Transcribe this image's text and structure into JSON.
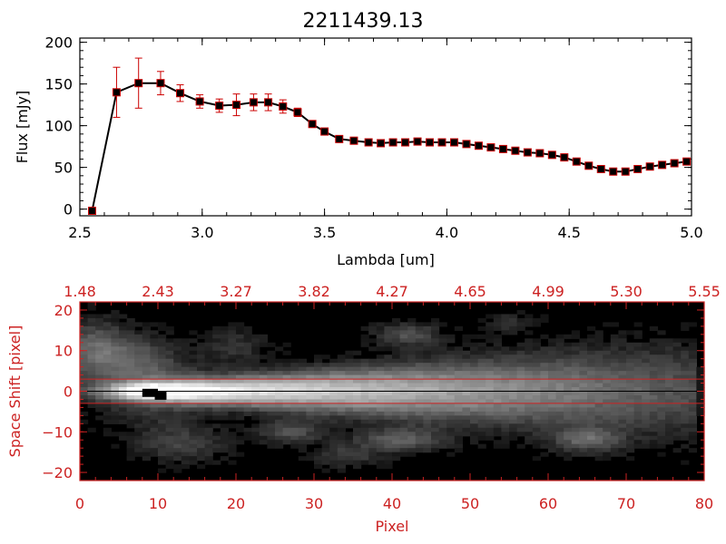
{
  "chart_data": [
    {
      "type": "line",
      "title": "2211439.13",
      "xlabel": "Lambda [um]",
      "ylabel": "Flux [mJy]",
      "xlim": [
        2.5,
        5.0
      ],
      "ylim": [
        -8,
        205
      ],
      "x_ticks": [
        {
          "v": 2.5,
          "label": "2.5"
        },
        {
          "v": 3.0,
          "label": "3.0"
        },
        {
          "v": 3.5,
          "label": "3.5"
        },
        {
          "v": 4.0,
          "label": "4.0"
        },
        {
          "v": 4.5,
          "label": "4.5"
        },
        {
          "v": 5.0,
          "label": "5.0"
        }
      ],
      "y_ticks": [
        {
          "v": 0,
          "label": "0"
        },
        {
          "v": 50,
          "label": "50"
        },
        {
          "v": 100,
          "label": "100"
        },
        {
          "v": 150,
          "label": "150"
        },
        {
          "v": 200,
          "label": "200"
        }
      ],
      "grid": false,
      "colors": {
        "line": "#000000",
        "marker": "#000000",
        "marker_edge": "#cc0000",
        "errorbar": "#cc0000"
      },
      "series": [
        {
          "x": [
            2.55,
            2.65,
            2.74,
            2.83,
            2.91,
            2.99,
            3.07,
            3.14,
            3.21,
            3.27,
            3.33,
            3.39,
            3.45,
            3.5,
            3.56,
            3.62,
            3.68,
            3.73,
            3.78,
            3.83,
            3.88,
            3.93,
            3.98,
            4.03,
            4.08,
            4.13,
            4.18,
            4.23,
            4.28,
            4.33,
            4.38,
            4.43,
            4.48,
            4.53,
            4.58,
            4.63,
            4.68,
            4.73,
            4.78,
            4.83,
            4.88,
            4.93,
            4.98
          ],
          "y": [
            -2,
            140,
            151,
            151,
            139,
            129,
            124,
            125,
            128,
            128,
            123,
            116,
            102,
            93,
            84,
            82,
            80,
            79,
            80,
            80,
            81,
            80,
            80,
            80,
            78,
            76,
            74,
            72,
            70,
            68,
            67,
            65,
            62,
            57,
            52,
            48,
            45,
            45,
            48,
            51,
            53,
            55,
            57
          ],
          "yerr": [
            2,
            30,
            30,
            14,
            10,
            8,
            8,
            13,
            10,
            10,
            8,
            5,
            4,
            3,
            3,
            3,
            3,
            3,
            3,
            3,
            3,
            3,
            3,
            3,
            3,
            3,
            3,
            3,
            3,
            3,
            3,
            3,
            3,
            3,
            3,
            3,
            3,
            3,
            3,
            3,
            3,
            3,
            3
          ]
        }
      ]
    },
    {
      "type": "heatmap",
      "xlabel": "Pixel",
      "ylabel": "Space Shift [pixel]",
      "xlim": [
        0,
        80
      ],
      "ylim": [
        -22,
        22
      ],
      "x_ticks": [
        {
          "v": 0,
          "label": "0"
        },
        {
          "v": 10,
          "label": "10"
        },
        {
          "v": 20,
          "label": "20"
        },
        {
          "v": 30,
          "label": "30"
        },
        {
          "v": 40,
          "label": "40"
        },
        {
          "v": 50,
          "label": "50"
        },
        {
          "v": 60,
          "label": "60"
        },
        {
          "v": 70,
          "label": "70"
        },
        {
          "v": 80,
          "label": "80"
        }
      ],
      "x2_ticks": [
        {
          "v": 0,
          "label": "1.48"
        },
        {
          "v": 10,
          "label": "2.43"
        },
        {
          "v": 20,
          "label": "3.27"
        },
        {
          "v": 30,
          "label": "3.82"
        },
        {
          "v": 40,
          "label": "4.27"
        },
        {
          "v": 50,
          "label": "4.65"
        },
        {
          "v": 60,
          "label": "4.99"
        },
        {
          "v": 70,
          "label": "5.30"
        },
        {
          "v": 80,
          "label": "5.55"
        }
      ],
      "y_ticks": [
        {
          "v": 20,
          "label": "20"
        },
        {
          "v": 10,
          "label": "10"
        },
        {
          "v": 0,
          "label": "0"
        },
        {
          "v": -10,
          "label": "−10"
        },
        {
          "v": -20,
          "label": "−20"
        }
      ],
      "aperture_lines": [
        3,
        -3
      ],
      "trace_center": 0,
      "colormap": "grayscale",
      "colors": {
        "axis": "#cc2222",
        "aperture": "#cc2222",
        "background": "#000000"
      }
    }
  ]
}
